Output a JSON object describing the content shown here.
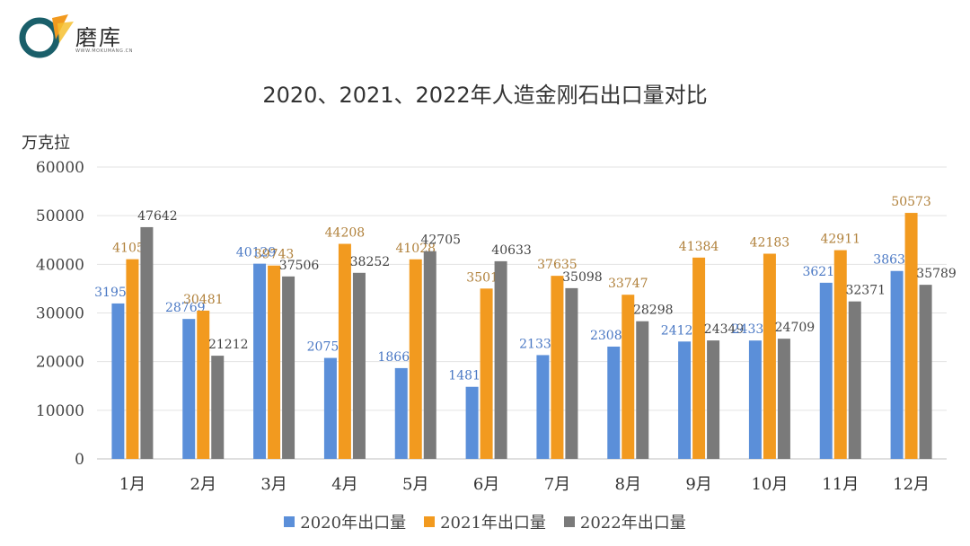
{
  "brand": {
    "name": "磨库",
    "subtitle": "WWW.MOKUMANG.CN",
    "colors": {
      "teal": "#1a5f6a",
      "orange": "#f29a1f",
      "gold": "#f6c030"
    }
  },
  "chart_data": {
    "type": "bar",
    "title": "2020、2021、2022年人造金刚石出口量对比",
    "ylabel": "万克拉",
    "xlabel": "",
    "ylim": [
      0,
      60000
    ],
    "yticks": [
      0,
      10000,
      20000,
      30000,
      40000,
      50000,
      60000
    ],
    "grid": true,
    "legend_position": "bottom",
    "categories": [
      "1月",
      "2月",
      "3月",
      "4月",
      "5月",
      "6月",
      "7月",
      "8月",
      "9月",
      "10月",
      "11月",
      "12月"
    ],
    "series": [
      {
        "name": "2020年出口量",
        "color": "#5b8fd9",
        "label_color": "#4a78c4",
        "values": [
          31954,
          28769,
          40129,
          20755,
          18664,
          14816,
          21337,
          23085,
          24128,
          24334,
          36210,
          38632
        ]
      },
      {
        "name": "2021年出口量",
        "color": "#f29a1f",
        "label_color": "#b0803a",
        "values": [
          41051,
          30481,
          39743,
          44208,
          41028,
          35016,
          37635,
          33747,
          41384,
          42183,
          42911,
          50573
        ]
      },
      {
        "name": "2022年出口量",
        "color": "#7a7a7a",
        "label_color": "#444444",
        "values": [
          47642,
          21212,
          37506,
          38252,
          42705,
          40633,
          35098,
          28298,
          24349,
          24709,
          32371,
          35789
        ]
      }
    ]
  }
}
